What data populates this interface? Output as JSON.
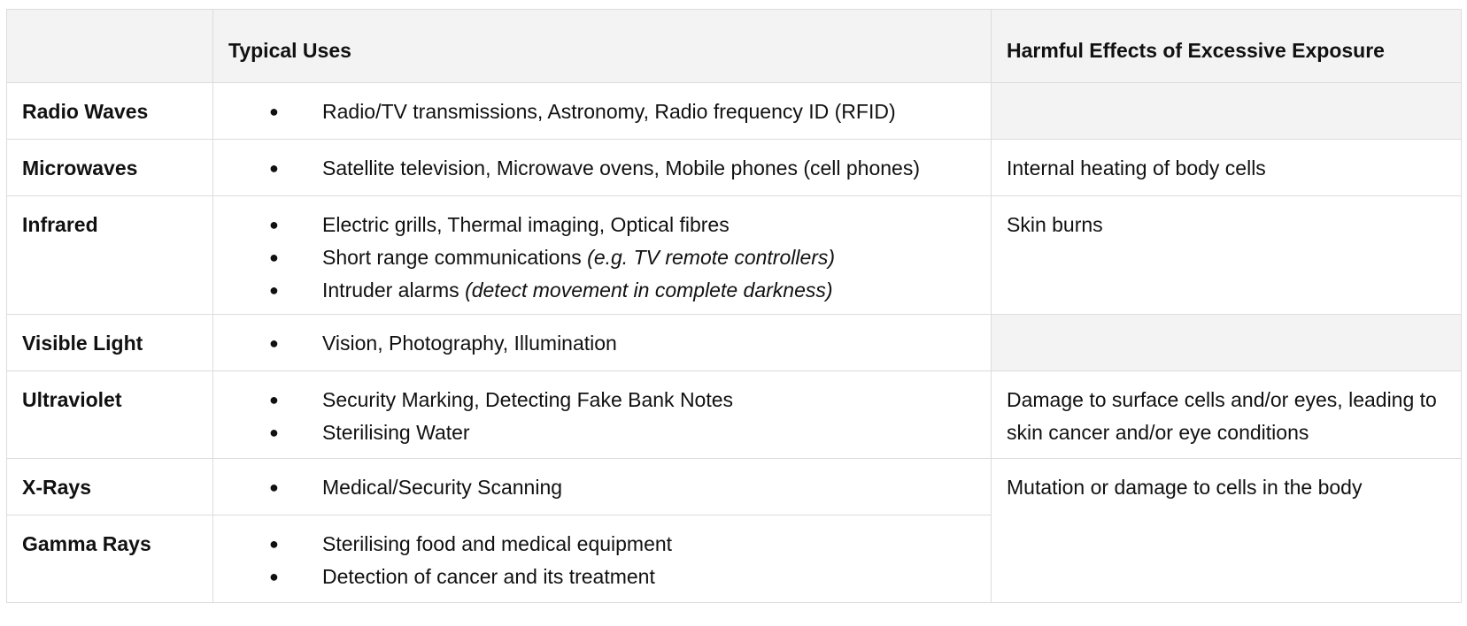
{
  "header": {
    "col_name": "",
    "col_uses": "Typical Uses",
    "col_harm": "Harmful Effects of Excessive Exposure"
  },
  "bullet_glyph": "●",
  "rows": [
    {
      "name": "Radio Waves",
      "uses": [
        {
          "text": "Radio/TV transmissions, Astronomy, Radio frequency ID (RFID)",
          "note": ""
        }
      ],
      "harm": ""
    },
    {
      "name": "Microwaves",
      "uses": [
        {
          "text": "Satellite television, Microwave ovens, Mobile phones (cell phones)",
          "note": ""
        }
      ],
      "harm": "Internal heating of body cells"
    },
    {
      "name": "Infrared",
      "uses": [
        {
          "text": "Electric grills, Thermal imaging, Optical fibres",
          "note": ""
        },
        {
          "text": "Short range communications ",
          "note": "(e.g. TV remote controllers)"
        },
        {
          "text": "Intruder alarms ",
          "note": "(detect movement in complete darkness)"
        }
      ],
      "harm": "Skin burns"
    },
    {
      "name": "Visible Light",
      "uses": [
        {
          "text": "Vision, Photography, Illumination",
          "note": ""
        }
      ],
      "harm": ""
    },
    {
      "name": "Ultraviolet",
      "uses": [
        {
          "text": "Security Marking, Detecting Fake Bank Notes",
          "note": ""
        },
        {
          "text": "Sterilising Water",
          "note": ""
        }
      ],
      "harm": "Damage to surface cells and/or eyes, leading to skin cancer and/or eye conditions"
    },
    {
      "name": "X-Rays",
      "uses": [
        {
          "text": "Medical/Security Scanning",
          "note": ""
        }
      ],
      "harm": "Mutation or damage to cells in the body"
    },
    {
      "name": "Gamma Rays",
      "uses": [
        {
          "text": "Sterilising food and medical equipment",
          "note": ""
        },
        {
          "text": "Detection of cancer and its treatment",
          "note": ""
        }
      ],
      "harm": ""
    }
  ],
  "colors": {
    "header_bg": "#f3f3f3",
    "border": "#dcdcdc",
    "text": "#111111"
  }
}
